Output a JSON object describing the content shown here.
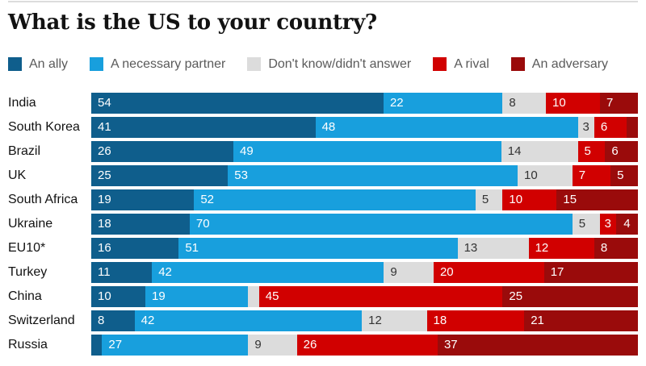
{
  "page": {
    "title": "What is the US to your country?"
  },
  "colors": {
    "an_ally": "#0f5e8c",
    "a_necessary_partner": "#189fdd",
    "dont_know": "#dcdcdc",
    "a_rival": "#d10000",
    "an_adversary": "#9a0b0b",
    "title_text": "#121212",
    "legend_text": "#5a5a5a",
    "gray_segment_text": "#333333",
    "bar_value_text": "#ffffff",
    "top_rule": "#dcdcdc"
  },
  "legend": {
    "items": [
      {
        "label": "An ally",
        "color": "#0f5e8c"
      },
      {
        "label": "A necessary partner",
        "color": "#189fdd"
      },
      {
        "label": "Don't know/didn't answer",
        "color": "#dcdcdc"
      },
      {
        "label": "A rival",
        "color": "#d10000"
      },
      {
        "label": "An adversary",
        "color": "#9a0b0b"
      }
    ]
  },
  "chart_data": {
    "type": "bar",
    "orientation": "horizontal",
    "stacked": true,
    "xlim": [
      0,
      100
    ],
    "grid": false,
    "legend_position": "top",
    "title": "What is the US to your country?",
    "series_names": [
      "An ally",
      "A necessary partner",
      "Don't know/didn't answer",
      "A rival",
      "An adversary"
    ],
    "series_colors": [
      "#0f5e8c",
      "#189fdd",
      "#dcdcdc",
      "#d10000",
      "#9a0b0b"
    ],
    "series_text_colors": [
      "#ffffff",
      "#ffffff",
      "#333333",
      "#ffffff",
      "#ffffff"
    ],
    "rows": [
      {
        "country": "India",
        "values": [
          54,
          22,
          8,
          10,
          7
        ],
        "labels": [
          "54",
          "22",
          "8",
          "10",
          "7"
        ]
      },
      {
        "country": "South Korea",
        "values": [
          41,
          48,
          3,
          6,
          2
        ],
        "labels": [
          "41",
          "48",
          "3",
          "6",
          ""
        ]
      },
      {
        "country": "Brazil",
        "values": [
          26,
          49,
          14,
          5,
          6
        ],
        "labels": [
          "26",
          "49",
          "14",
          "5",
          "6"
        ]
      },
      {
        "country": "UK",
        "values": [
          25,
          53,
          10,
          7,
          5
        ],
        "labels": [
          "25",
          "53",
          "10",
          "7",
          "5"
        ]
      },
      {
        "country": "South Africa",
        "values": [
          19,
          52,
          5,
          10,
          15
        ],
        "labels": [
          "19",
          "52",
          "5",
          "10",
          "15"
        ]
      },
      {
        "country": "Ukraine",
        "values": [
          18,
          70,
          5,
          3,
          4
        ],
        "labels": [
          "18",
          "70",
          "5",
          "3",
          "4"
        ]
      },
      {
        "country": "EU10*",
        "values": [
          16,
          51,
          13,
          12,
          8
        ],
        "labels": [
          "16",
          "51",
          "13",
          "12",
          "8"
        ]
      },
      {
        "country": "Turkey",
        "values": [
          11,
          42,
          9,
          20,
          17
        ],
        "labels": [
          "11",
          "42",
          "9",
          "20",
          "17"
        ]
      },
      {
        "country": "China",
        "values": [
          10,
          19,
          2,
          45,
          25
        ],
        "labels": [
          "10",
          "19",
          "",
          "45",
          "25"
        ]
      },
      {
        "country": "Switzerland",
        "values": [
          8,
          42,
          12,
          18,
          21
        ],
        "labels": [
          "8",
          "42",
          "12",
          "18",
          "21"
        ]
      },
      {
        "country": "Russia",
        "values": [
          2,
          27,
          9,
          26,
          37
        ],
        "labels": [
          "",
          "27",
          "9",
          "26",
          "37"
        ]
      }
    ]
  }
}
